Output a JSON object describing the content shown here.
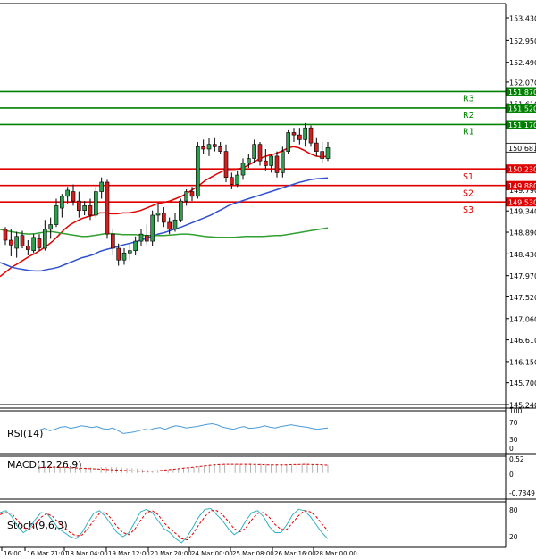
{
  "chart_data": [
    {
      "type": "candlestick",
      "panel": "main",
      "y_axis_labels": [
        "153.430",
        "152.950",
        "152.490",
        "152.070",
        "151.610",
        "151.150",
        "150.690",
        "150.230",
        "149.790",
        "149.340",
        "148.890",
        "148.430",
        "147.970",
        "147.520",
        "147.060",
        "146.610",
        "146.150",
        "145.700",
        "145.240"
      ],
      "ylim": [
        145.24,
        153.43
      ],
      "current_price": "150.681",
      "levels": [
        {
          "name": "R3",
          "value": 151.87,
          "label": "151.870",
          "color": "#008000"
        },
        {
          "name": "R2",
          "value": 151.52,
          "label": "151.520",
          "color": "#008000"
        },
        {
          "name": "R1",
          "value": 151.17,
          "label": "151.170",
          "color": "#008000"
        },
        {
          "name": "S1",
          "value": 150.23,
          "label": "150.230",
          "color": "#e00000"
        },
        {
          "name": "S2",
          "value": 149.88,
          "label": "149.880",
          "color": "#e00000"
        },
        {
          "name": "S3",
          "value": 149.53,
          "label": "149.530",
          "color": "#e00000"
        }
      ],
      "candles": [
        {
          "o": 148.95,
          "h": 149.0,
          "l": 148.62,
          "c": 148.72
        },
        {
          "o": 148.72,
          "h": 148.95,
          "l": 148.38,
          "c": 148.62
        },
        {
          "o": 148.55,
          "h": 148.9,
          "l": 148.35,
          "c": 148.8
        },
        {
          "o": 148.82,
          "h": 148.92,
          "l": 148.55,
          "c": 148.6
        },
        {
          "o": 148.6,
          "h": 148.72,
          "l": 148.4,
          "c": 148.52
        },
        {
          "o": 148.5,
          "h": 148.85,
          "l": 148.45,
          "c": 148.78
        },
        {
          "o": 148.75,
          "h": 148.85,
          "l": 148.5,
          "c": 148.56
        },
        {
          "o": 148.55,
          "h": 149.15,
          "l": 148.5,
          "c": 148.95
        },
        {
          "o": 148.95,
          "h": 149.2,
          "l": 148.75,
          "c": 149.05
        },
        {
          "o": 149.05,
          "h": 149.6,
          "l": 149.0,
          "c": 149.45
        },
        {
          "o": 149.4,
          "h": 149.7,
          "l": 149.2,
          "c": 149.65
        },
        {
          "o": 149.65,
          "h": 149.85,
          "l": 149.5,
          "c": 149.78
        },
        {
          "o": 149.75,
          "h": 149.9,
          "l": 149.45,
          "c": 149.55
        },
        {
          "o": 149.55,
          "h": 149.75,
          "l": 149.2,
          "c": 149.35
        },
        {
          "o": 149.35,
          "h": 149.55,
          "l": 149.25,
          "c": 149.45
        },
        {
          "o": 149.45,
          "h": 149.6,
          "l": 149.15,
          "c": 149.25
        },
        {
          "o": 149.25,
          "h": 149.85,
          "l": 149.2,
          "c": 149.75
        },
        {
          "o": 149.75,
          "h": 150.05,
          "l": 149.6,
          "c": 149.95
        },
        {
          "o": 149.95,
          "h": 150.0,
          "l": 148.75,
          "c": 148.85
        },
        {
          "o": 148.85,
          "h": 148.95,
          "l": 148.4,
          "c": 148.55
        },
        {
          "o": 148.55,
          "h": 148.65,
          "l": 148.18,
          "c": 148.3
        },
        {
          "o": 148.3,
          "h": 148.55,
          "l": 148.2,
          "c": 148.45
        },
        {
          "o": 148.45,
          "h": 148.65,
          "l": 148.3,
          "c": 148.5
        },
        {
          "o": 148.5,
          "h": 148.8,
          "l": 148.4,
          "c": 148.7
        },
        {
          "o": 148.7,
          "h": 148.95,
          "l": 148.6,
          "c": 148.85
        },
        {
          "o": 148.82,
          "h": 149.05,
          "l": 148.62,
          "c": 148.7
        },
        {
          "o": 148.7,
          "h": 149.35,
          "l": 148.6,
          "c": 149.25
        },
        {
          "o": 149.25,
          "h": 149.5,
          "l": 149.1,
          "c": 149.3
        },
        {
          "o": 149.3,
          "h": 149.42,
          "l": 149.0,
          "c": 149.1
        },
        {
          "o": 149.1,
          "h": 149.2,
          "l": 148.85,
          "c": 148.95
        },
        {
          "o": 148.95,
          "h": 149.3,
          "l": 148.9,
          "c": 149.15
        },
        {
          "o": 149.15,
          "h": 149.6,
          "l": 149.1,
          "c": 149.55
        },
        {
          "o": 149.55,
          "h": 149.8,
          "l": 149.45,
          "c": 149.75
        },
        {
          "o": 149.75,
          "h": 149.85,
          "l": 149.55,
          "c": 149.65
        },
        {
          "o": 149.65,
          "h": 150.8,
          "l": 149.6,
          "c": 150.7
        },
        {
          "o": 150.7,
          "h": 150.85,
          "l": 150.55,
          "c": 150.65
        },
        {
          "o": 150.65,
          "h": 150.88,
          "l": 150.5,
          "c": 150.75
        },
        {
          "o": 150.75,
          "h": 150.9,
          "l": 150.6,
          "c": 150.7
        },
        {
          "o": 150.7,
          "h": 150.8,
          "l": 150.55,
          "c": 150.6
        },
        {
          "o": 150.6,
          "h": 150.75,
          "l": 149.95,
          "c": 150.05
        },
        {
          "o": 150.05,
          "h": 150.15,
          "l": 149.8,
          "c": 149.9
        },
        {
          "o": 149.9,
          "h": 150.2,
          "l": 149.85,
          "c": 150.1
        },
        {
          "o": 150.1,
          "h": 150.45,
          "l": 150.0,
          "c": 150.35
        },
        {
          "o": 150.35,
          "h": 150.55,
          "l": 150.25,
          "c": 150.45
        },
        {
          "o": 150.45,
          "h": 150.85,
          "l": 150.35,
          "c": 150.75
        },
        {
          "o": 150.75,
          "h": 150.8,
          "l": 150.3,
          "c": 150.4
        },
        {
          "o": 150.4,
          "h": 150.65,
          "l": 150.2,
          "c": 150.3
        },
        {
          "o": 150.3,
          "h": 150.55,
          "l": 150.15,
          "c": 150.5
        },
        {
          "o": 150.5,
          "h": 150.6,
          "l": 150.05,
          "c": 150.15
        },
        {
          "o": 150.15,
          "h": 150.7,
          "l": 150.05,
          "c": 150.6
        },
        {
          "o": 150.6,
          "h": 151.05,
          "l": 150.55,
          "c": 151.0
        },
        {
          "o": 151.0,
          "h": 151.1,
          "l": 150.8,
          "c": 150.95
        },
        {
          "o": 150.95,
          "h": 151.1,
          "l": 150.75,
          "c": 150.85
        },
        {
          "o": 150.85,
          "h": 151.2,
          "l": 150.7,
          "c": 151.1
        },
        {
          "o": 151.1,
          "h": 151.15,
          "l": 150.7,
          "c": 150.78
        },
        {
          "o": 150.78,
          "h": 150.9,
          "l": 150.5,
          "c": 150.6
        },
        {
          "o": 150.6,
          "h": 150.8,
          "l": 150.35,
          "c": 150.45
        },
        {
          "o": 150.45,
          "h": 150.8,
          "l": 150.4,
          "c": 150.68
        }
      ],
      "moving_averages": [
        {
          "color": "#e00000",
          "values": [
            147.95,
            148.05,
            148.15,
            148.22,
            148.3,
            148.38,
            148.44,
            148.52,
            148.6,
            148.7,
            148.82,
            148.95,
            149.05,
            149.12,
            149.18,
            149.22,
            149.25,
            149.3,
            149.3,
            149.28,
            149.28,
            149.3,
            149.3,
            149.32,
            149.35,
            149.4,
            149.45,
            149.5,
            149.52,
            149.55,
            149.6,
            149.65,
            149.72,
            149.8,
            149.88,
            149.98,
            150.05,
            150.12,
            150.18,
            150.22,
            150.22,
            150.24,
            150.28,
            150.35,
            150.42,
            150.48,
            150.52,
            150.55,
            150.6,
            150.66,
            150.7,
            150.68,
            150.62,
            150.55,
            150.5,
            150.48,
            150.5
          ]
        },
        {
          "color": "#3050d0",
          "values": [
            148.25,
            148.2,
            148.15,
            148.12,
            148.1,
            148.08,
            148.07,
            148.07,
            148.1,
            148.12,
            148.15,
            148.2,
            148.25,
            148.3,
            148.35,
            148.38,
            148.42,
            148.48,
            148.52,
            148.55,
            148.58,
            148.62,
            148.65,
            148.68,
            148.72,
            148.76,
            148.8,
            148.85,
            148.88,
            148.92,
            148.96,
            149.0,
            149.05,
            149.1,
            149.15,
            149.2,
            149.25,
            149.32,
            149.38,
            149.45,
            149.5,
            149.54,
            149.58,
            149.62,
            149.66,
            149.7,
            149.74,
            149.78,
            149.82,
            149.86,
            149.9,
            149.94,
            149.97,
            150.0,
            150.02,
            150.03,
            150.04
          ]
        },
        {
          "color": "#30a030",
          "values": [
            148.95,
            148.92,
            148.9,
            148.88,
            148.86,
            148.85,
            148.86,
            148.88,
            148.9,
            148.9,
            148.88,
            148.86,
            148.84,
            148.82,
            148.8,
            148.8,
            148.82,
            148.84,
            148.86,
            148.86,
            148.85,
            148.84,
            148.84,
            148.84,
            148.83,
            148.82,
            148.82,
            148.82,
            148.82,
            148.83,
            148.84,
            148.85,
            148.85,
            148.84,
            148.82,
            148.8,
            148.79,
            148.78,
            148.78,
            148.78,
            148.78,
            148.79,
            148.8,
            148.8,
            148.8,
            148.8,
            148.81,
            148.82,
            148.82,
            148.84,
            148.86,
            148.88,
            148.9,
            148.92,
            148.94,
            148.96,
            148.98
          ]
        }
      ]
    },
    {
      "type": "line",
      "panel": "RSI",
      "label": "RSI(14)",
      "y_axis_labels": [
        "100",
        "70",
        "30",
        "0"
      ],
      "ylim": [
        0,
        100
      ],
      "series": [
        {
          "color": "#4a9ad8",
          "values": [
            50,
            55,
            48,
            52,
            58,
            60,
            55,
            58,
            62,
            60,
            57,
            60,
            54,
            52,
            56,
            48,
            40,
            42,
            44,
            48,
            52,
            50,
            55,
            57,
            52,
            58,
            62,
            60,
            56,
            58,
            60,
            63,
            66,
            68,
            64,
            58,
            55,
            52,
            57,
            60,
            55,
            56,
            58,
            62,
            58,
            56,
            60,
            62,
            65,
            62,
            60,
            58,
            55,
            52,
            54,
            56
          ]
        }
      ]
    },
    {
      "type": "line",
      "panel": "MACD",
      "label": "MACD(12,26,9)",
      "y_axis_labels": [
        "0.52",
        "0",
        "-0.7349"
      ],
      "ylim": [
        -0.7349,
        0.52
      ],
      "histogram": [
        0.3,
        0.28,
        0.26,
        0.25,
        0.24,
        0.23,
        0.22,
        0.22,
        0.21,
        0.2,
        0.2,
        0.21,
        0.22,
        0.22,
        0.22,
        0.21,
        0.2,
        0.19,
        0.18,
        0.16,
        0.14,
        0.12,
        0.1,
        0.1,
        0.11,
        0.12,
        0.14,
        0.16,
        0.18,
        0.2,
        0.22,
        0.25,
        0.28,
        0.3,
        0.32,
        0.33,
        0.34,
        0.34,
        0.33,
        0.32,
        0.32,
        0.33,
        0.34,
        0.34,
        0.33,
        0.32,
        0.31,
        0.3,
        0.3,
        0.31,
        0.32,
        0.33,
        0.32,
        0.31,
        0.3,
        0.29,
        0.28
      ],
      "series": [
        {
          "color": "#e00000",
          "values": [
            0.2,
            0.21,
            0.22,
            0.22,
            0.22,
            0.21,
            0.2,
            0.19,
            0.18,
            0.17,
            0.16,
            0.15,
            0.14,
            0.13,
            0.12,
            0.11,
            0.1,
            0.09,
            0.08,
            0.07,
            0.06,
            0.06,
            0.07,
            0.08,
            0.1,
            0.12,
            0.14,
            0.16,
            0.18,
            0.2,
            0.22,
            0.24,
            0.26,
            0.28,
            0.3,
            0.31,
            0.32,
            0.32,
            0.32,
            0.32,
            0.32,
            0.32,
            0.31,
            0.31,
            0.3,
            0.3,
            0.3,
            0.3,
            0.3,
            0.31,
            0.31,
            0.32,
            0.32,
            0.31,
            0.31,
            0.3,
            0.29
          ]
        }
      ]
    },
    {
      "type": "line",
      "panel": "Stoch",
      "label": "Stoch(9,6,3)",
      "y_axis_labels": [
        "80",
        "20"
      ],
      "ylim": [
        0,
        100
      ],
      "series": [
        {
          "color": "#30b0c0",
          "values": [
            80,
            85,
            70,
            45,
            30,
            40,
            62,
            80,
            78,
            60,
            40,
            30,
            20,
            15,
            30,
            55,
            78,
            85,
            70,
            50,
            30,
            20,
            30,
            55,
            82,
            88,
            80,
            60,
            40,
            30,
            15,
            5,
            20,
            45,
            70,
            88,
            90,
            75,
            60,
            40,
            25,
            35,
            60,
            80,
            85,
            70,
            45,
            30,
            30,
            50,
            75,
            88,
            85,
            70,
            50,
            30,
            15
          ]
        },
        {
          "color": "#e00000",
          "values": [
            75,
            80,
            78,
            60,
            42,
            38,
            50,
            68,
            78,
            70,
            55,
            42,
            30,
            22,
            24,
            40,
            60,
            78,
            80,
            65,
            45,
            30,
            25,
            38,
            60,
            80,
            85,
            75,
            55,
            40,
            28,
            15,
            12,
            28,
            50,
            70,
            85,
            85,
            75,
            58,
            40,
            32,
            42,
            62,
            78,
            80,
            68,
            50,
            38,
            38,
            55,
            72,
            85,
            82,
            70,
            52,
            35
          ]
        }
      ]
    }
  ],
  "x_axis_labels": [
    "16:00",
    "16 Mar 21:01",
    "18 Mar 04:00",
    "19 Mar 12:00",
    "20 Mar 20:00",
    "24 Mar 00:00",
    "25 Mar 08:00",
    "26 Mar 16:00",
    "28 Mar 00:00"
  ]
}
